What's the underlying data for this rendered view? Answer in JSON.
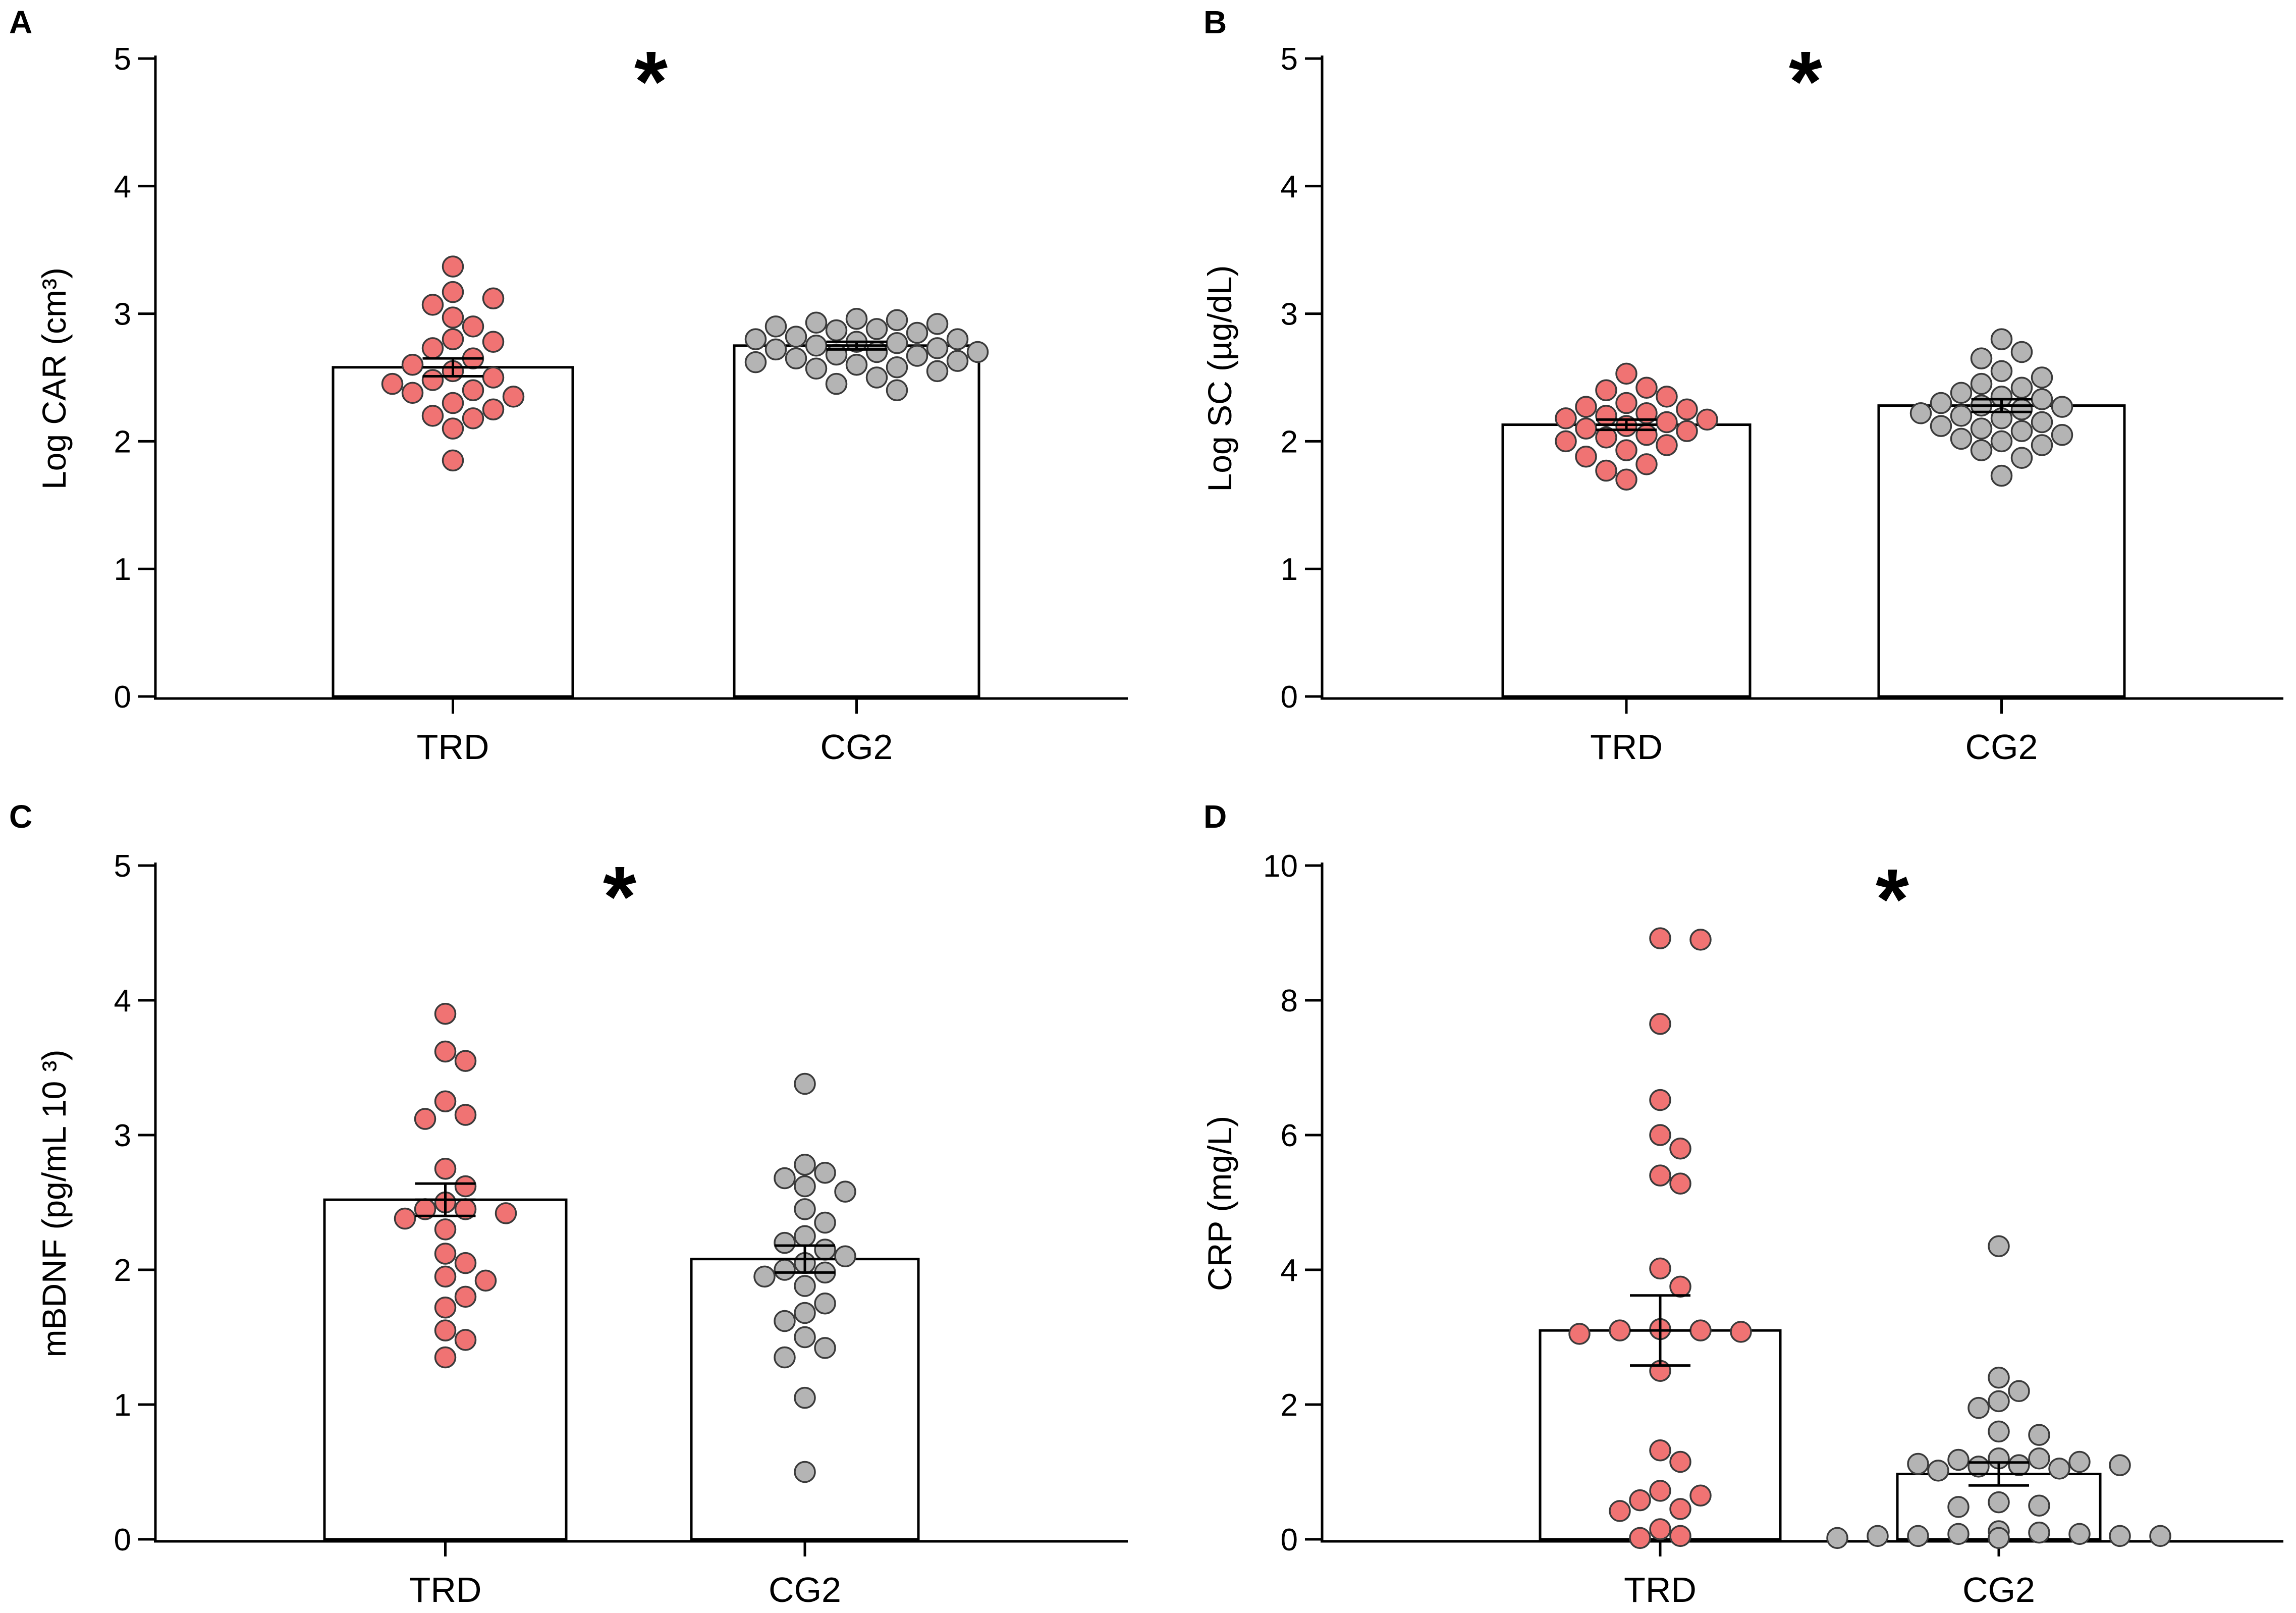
{
  "chart_data": [
    {
      "panel": "A",
      "type": "bar",
      "categories": [
        "TRD",
        "CG2"
      ],
      "values": [
        2.58,
        2.75
      ],
      "sem": [
        0.07,
        0.03
      ],
      "ylabel": "Log CAR (cm³)",
      "ylim": [
        0,
        5
      ],
      "yticks": [
        "0",
        "1",
        "2",
        "3",
        "4",
        "5"
      ],
      "significance": "*",
      "points": [
        [
          3.37,
          3.17,
          3.12,
          3.07,
          2.97,
          2.9,
          2.8,
          2.78,
          2.73,
          2.65,
          2.6,
          2.55,
          2.5,
          2.48,
          2.45,
          2.4,
          2.38,
          2.35,
          2.3,
          2.25,
          2.2,
          2.18,
          2.1,
          1.85
        ],
        [
          2.96,
          2.95,
          2.93,
          2.92,
          2.9,
          2.88,
          2.87,
          2.85,
          2.82,
          2.8,
          2.8,
          2.78,
          2.77,
          2.75,
          2.73,
          2.72,
          2.7,
          2.7,
          2.68,
          2.67,
          2.65,
          2.63,
          2.62,
          2.6,
          2.58,
          2.57,
          2.55,
          2.5,
          2.45,
          2.4
        ]
      ]
    },
    {
      "panel": "B",
      "type": "bar",
      "categories": [
        "TRD",
        "CG2"
      ],
      "values": [
        2.13,
        2.28
      ],
      "sem": [
        0.04,
        0.05
      ],
      "ylabel": "Log SC (µg/dL)",
      "ylim": [
        0,
        5
      ],
      "yticks": [
        "0",
        "1",
        "2",
        "3",
        "4",
        "5"
      ],
      "significance": "*",
      "points": [
        [
          2.53,
          2.42,
          2.4,
          2.35,
          2.3,
          2.27,
          2.25,
          2.22,
          2.2,
          2.18,
          2.17,
          2.15,
          2.12,
          2.1,
          2.08,
          2.05,
          2.03,
          2.0,
          1.97,
          1.93,
          1.88,
          1.82,
          1.77,
          1.7
        ],
        [
          2.8,
          2.7,
          2.65,
          2.55,
          2.5,
          2.45,
          2.42,
          2.38,
          2.35,
          2.33,
          2.3,
          2.28,
          2.27,
          2.25,
          2.22,
          2.2,
          2.18,
          2.15,
          2.12,
          2.1,
          2.08,
          2.05,
          2.02,
          2.0,
          1.97,
          1.93,
          1.87,
          1.73
        ]
      ]
    },
    {
      "panel": "C",
      "type": "bar",
      "categories": [
        "TRD",
        "CG2"
      ],
      "values": [
        2.52,
        2.08
      ],
      "sem": [
        0.12,
        0.1
      ],
      "ylabel": "mBDNF (pg/mL 10 ³)",
      "ylim": [
        0,
        5
      ],
      "yticks": [
        "0",
        "1",
        "2",
        "3",
        "4",
        "5"
      ],
      "significance": "*",
      "points": [
        [
          3.9,
          3.62,
          3.55,
          3.25,
          3.15,
          3.12,
          2.75,
          2.62,
          2.5,
          2.45,
          2.45,
          2.42,
          2.38,
          2.3,
          2.12,
          2.05,
          1.95,
          1.92,
          1.8,
          1.72,
          1.55,
          1.48,
          1.35
        ],
        [
          3.38,
          2.78,
          2.72,
          2.68,
          2.62,
          2.58,
          2.45,
          2.35,
          2.25,
          2.2,
          2.15,
          2.1,
          2.05,
          2.0,
          1.98,
          1.95,
          1.88,
          1.75,
          1.68,
          1.62,
          1.5,
          1.42,
          1.35,
          1.05,
          0.5
        ]
      ]
    },
    {
      "panel": "D",
      "type": "bar",
      "categories": [
        "TRD",
        "CG2"
      ],
      "values": [
        3.1,
        0.97
      ],
      "sem": [
        0.52,
        0.17
      ],
      "ylabel": "CRP (mg/L)",
      "ylim": [
        0,
        10
      ],
      "yticks": [
        "0",
        "2",
        "4",
        "6",
        "8",
        "10"
      ],
      "significance": "*",
      "points": [
        [
          8.92,
          8.9,
          7.65,
          6.52,
          6.0,
          5.8,
          5.4,
          5.28,
          4.02,
          3.75,
          3.12,
          3.1,
          3.1,
          3.08,
          3.05,
          2.5,
          1.32,
          1.15,
          0.72,
          0.65,
          0.58,
          0.45,
          0.42,
          0.15,
          0.05,
          0.02
        ],
        [
          4.35,
          2.4,
          2.2,
          2.05,
          1.95,
          1.6,
          1.55,
          1.2,
          1.2,
          1.18,
          1.15,
          1.12,
          1.1,
          1.1,
          1.08,
          1.05,
          1.02,
          0.55,
          0.5,
          0.48,
          0.12,
          0.1,
          0.08,
          0.08,
          0.05,
          0.05,
          0.05,
          0.05,
          0.02,
          0.02
        ]
      ]
    }
  ],
  "colors": {
    "TRD": "#f07373",
    "CG2": "#b4b4b4"
  }
}
